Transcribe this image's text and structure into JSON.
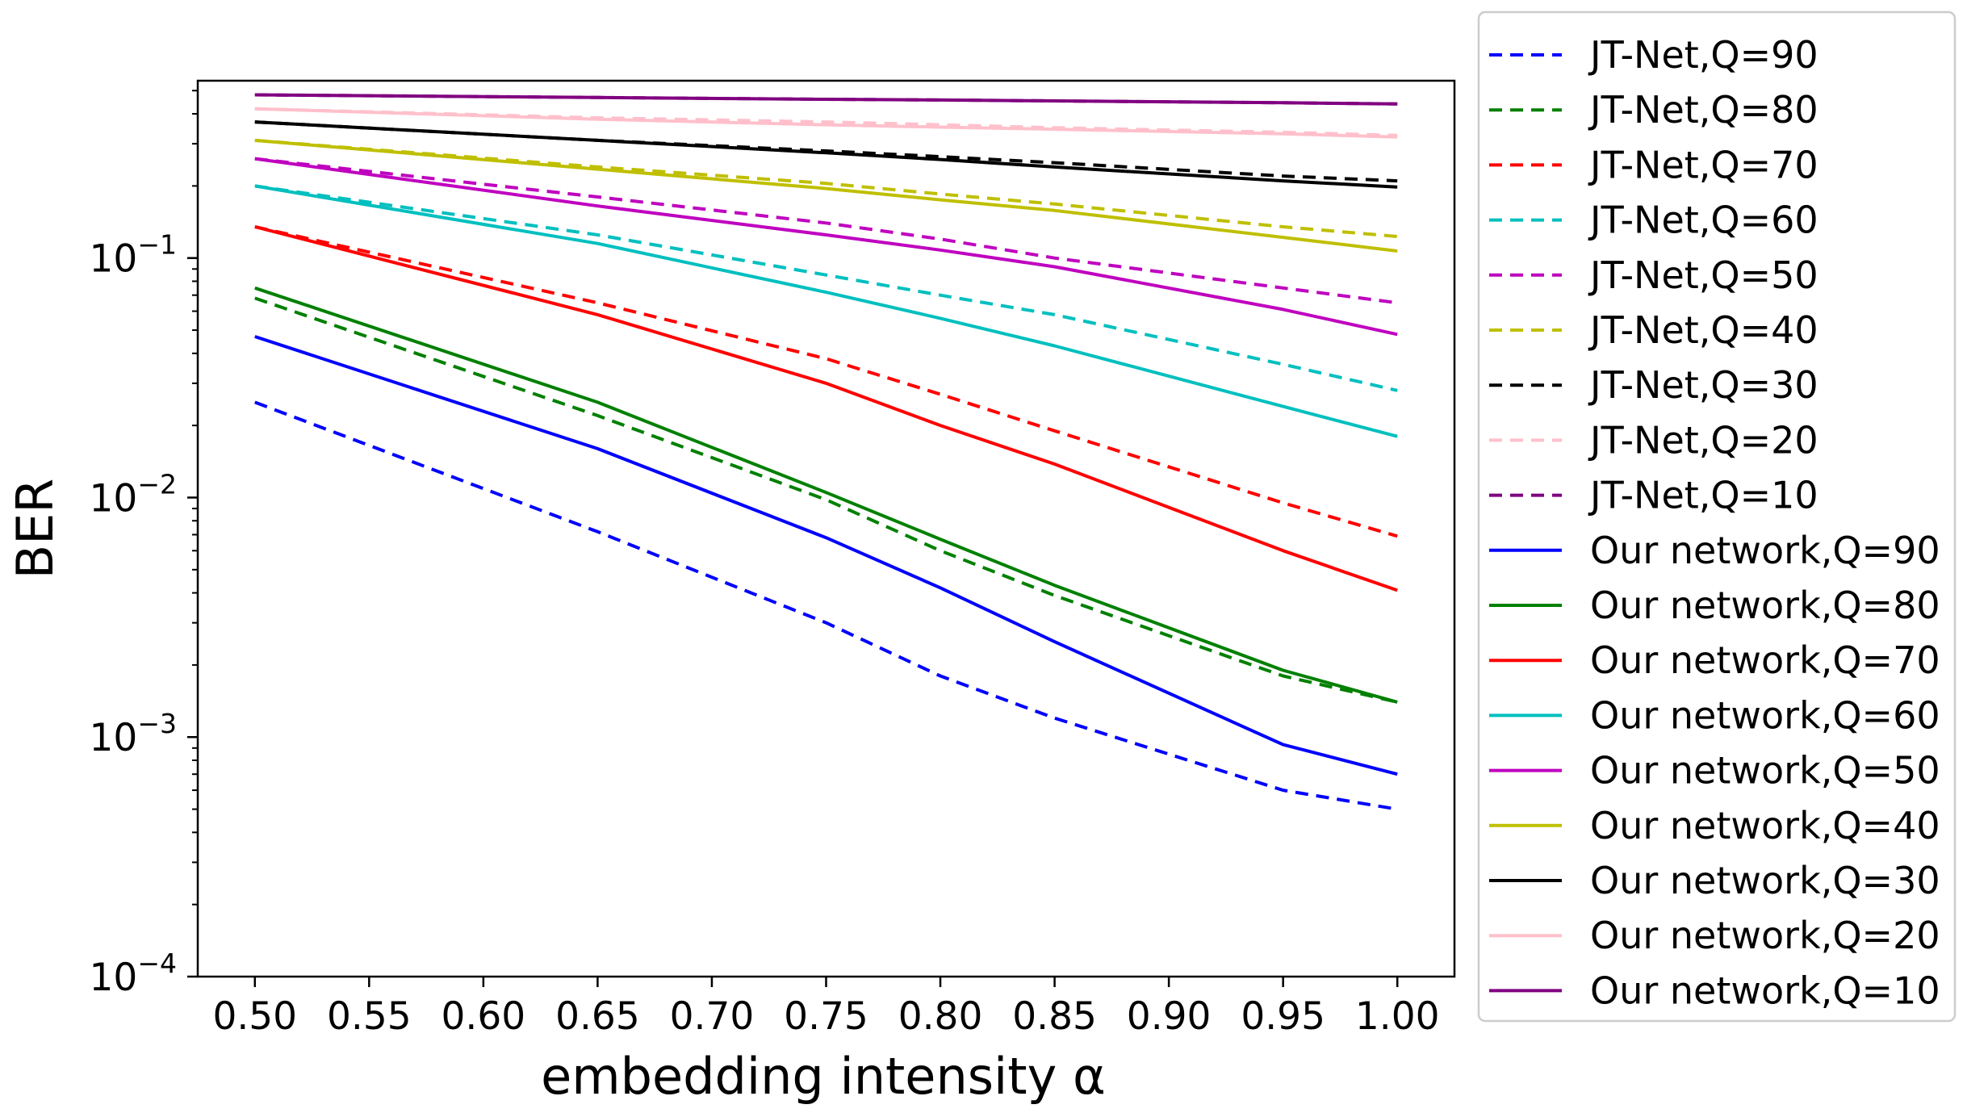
{
  "chart_data": {
    "type": "line",
    "title": "",
    "xlabel": "embedding intensity α",
    "ylabel": "BER",
    "x": [
      0.5,
      0.65,
      0.75,
      0.8,
      0.85,
      0.95,
      1.0
    ],
    "xlim": [
      0.475,
      1.025
    ],
    "ylim": [
      0.0001,
      0.55
    ],
    "yscale": "log",
    "xticks": [
      "0.50",
      "0.55",
      "0.60",
      "0.65",
      "0.70",
      "0.75",
      "0.80",
      "0.85",
      "0.90",
      "0.95",
      "1.00"
    ],
    "yticks": [
      {
        "base": "10",
        "exp": "−1",
        "value": 0.1
      },
      {
        "base": "10",
        "exp": "−2",
        "value": 0.01
      },
      {
        "base": "10",
        "exp": "−3",
        "value": 0.001
      },
      {
        "base": "10",
        "exp": "−4",
        "value": 0.0001
      }
    ],
    "grid": false,
    "legend_position": "outside-right",
    "series": [
      {
        "name": "JT-Net,Q=90",
        "color": "#0000ff",
        "style": "dashed",
        "values": [
          0.025,
          0.0072,
          0.003,
          0.0018,
          0.0012,
          0.0006,
          0.0005
        ]
      },
      {
        "name": "JT-Net,Q=80",
        "color": "#008000",
        "style": "dashed",
        "values": [
          0.068,
          0.022,
          0.0098,
          0.006,
          0.0039,
          0.0018,
          0.0014
        ]
      },
      {
        "name": "JT-Net,Q=70",
        "color": "#ff0000",
        "style": "dashed",
        "values": [
          0.135,
          0.065,
          0.038,
          0.027,
          0.019,
          0.0095,
          0.0069
        ]
      },
      {
        "name": "JT-Net,Q=60",
        "color": "#00bfbf",
        "style": "dashed",
        "values": [
          0.2,
          0.125,
          0.085,
          0.07,
          0.058,
          0.036,
          0.028
        ]
      },
      {
        "name": "JT-Net,Q=50",
        "color": "#bf00bf",
        "style": "dashed",
        "values": [
          0.26,
          0.18,
          0.14,
          0.12,
          0.1,
          0.075,
          0.065
        ]
      },
      {
        "name": "JT-Net,Q=40",
        "color": "#bfbf00",
        "style": "dashed",
        "values": [
          0.31,
          0.24,
          0.205,
          0.185,
          0.168,
          0.135,
          0.123
        ]
      },
      {
        "name": "JT-Net,Q=30",
        "color": "#000000",
        "style": "dashed",
        "values": [
          0.37,
          0.31,
          0.28,
          0.265,
          0.25,
          0.22,
          0.21
        ]
      },
      {
        "name": "JT-Net,Q=20",
        "color": "#ffc0cb",
        "style": "dashed",
        "values": [
          0.42,
          0.385,
          0.37,
          0.36,
          0.35,
          0.335,
          0.325
        ]
      },
      {
        "name": "JT-Net,Q=10",
        "color": "#800080",
        "style": "dashed",
        "values": [
          0.48,
          0.468,
          0.46,
          0.457,
          0.453,
          0.445,
          0.44
        ]
      },
      {
        "name": "Our network,Q=90",
        "color": "#0000ff",
        "style": "solid",
        "values": [
          0.047,
          0.016,
          0.0068,
          0.0042,
          0.0025,
          0.00093,
          0.0007
        ]
      },
      {
        "name": "Our network,Q=80",
        "color": "#008000",
        "style": "solid",
        "values": [
          0.075,
          0.025,
          0.0105,
          0.0067,
          0.0043,
          0.0019,
          0.0014
        ]
      },
      {
        "name": "Our network,Q=70",
        "color": "#ff0000",
        "style": "solid",
        "values": [
          0.135,
          0.058,
          0.03,
          0.02,
          0.0138,
          0.006,
          0.0041
        ]
      },
      {
        "name": "Our network,Q=60",
        "color": "#00bfbf",
        "style": "solid",
        "values": [
          0.2,
          0.115,
          0.072,
          0.056,
          0.043,
          0.024,
          0.018
        ]
      },
      {
        "name": "Our network,Q=50",
        "color": "#bf00bf",
        "style": "solid",
        "values": [
          0.26,
          0.165,
          0.125,
          0.108,
          0.092,
          0.061,
          0.048
        ]
      },
      {
        "name": "Our network,Q=40",
        "color": "#bfbf00",
        "style": "solid",
        "values": [
          0.31,
          0.235,
          0.195,
          0.175,
          0.158,
          0.122,
          0.107
        ]
      },
      {
        "name": "Our network,Q=30",
        "color": "#000000",
        "style": "solid",
        "values": [
          0.37,
          0.31,
          0.275,
          0.258,
          0.24,
          0.21,
          0.198
        ]
      },
      {
        "name": "Our network,Q=20",
        "color": "#ffc0cb",
        "style": "solid",
        "values": [
          0.42,
          0.38,
          0.36,
          0.352,
          0.345,
          0.33,
          0.32
        ]
      },
      {
        "name": "Our network,Q=10",
        "color": "#800080",
        "style": "solid",
        "values": [
          0.48,
          0.468,
          0.46,
          0.457,
          0.453,
          0.445,
          0.44
        ]
      }
    ]
  }
}
